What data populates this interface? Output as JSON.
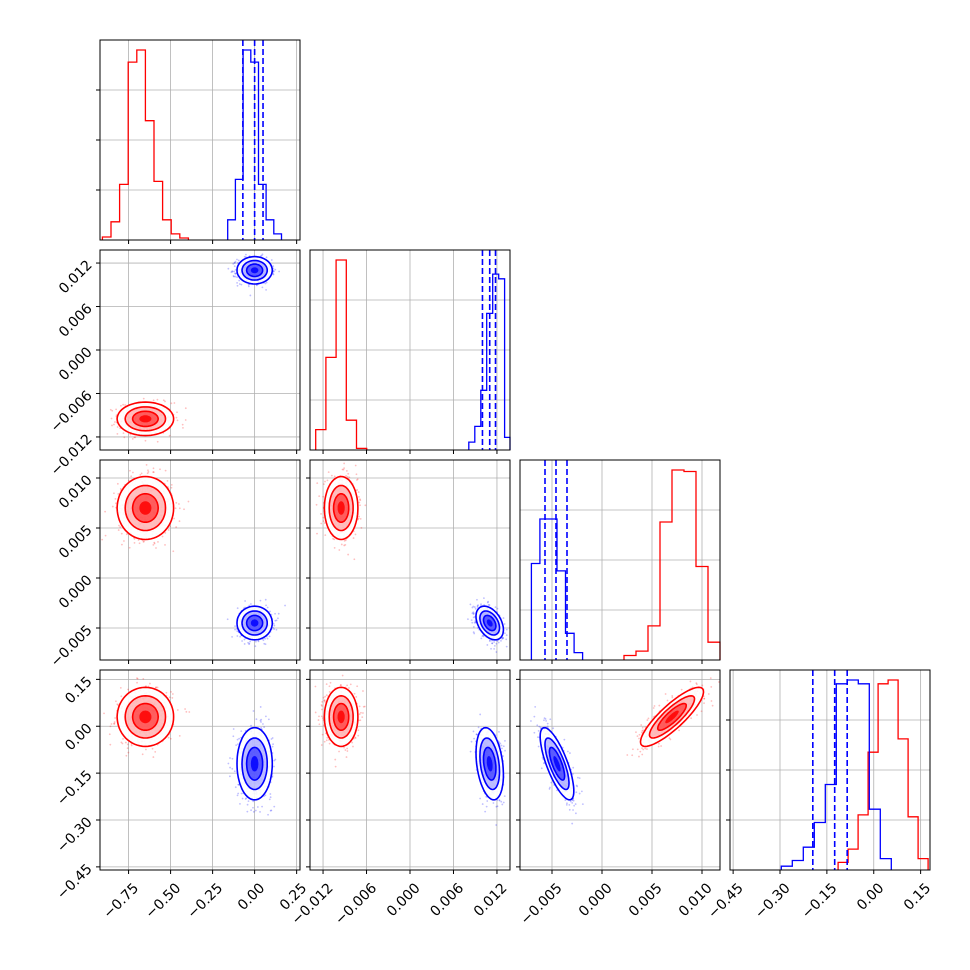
{
  "chart_data": {
    "type": "scatter",
    "title": "",
    "grid": true,
    "colors": {
      "run_a": "#ff0000",
      "run_b": "#0000ff"
    },
    "series": [],
    "parameters": [
      {
        "range": [
          -0.92,
          0.27
        ],
        "ticks": [
          -0.75,
          -0.5,
          -0.25,
          0.0,
          0.25
        ],
        "tick_labels": [
          "−0.75",
          "−0.50",
          "−0.25",
          "0.00",
          "0.25"
        ]
      },
      {
        "range": [
          -0.0138,
          0.0138
        ],
        "ticks": [
          -0.012,
          -0.006,
          0.0,
          0.006,
          0.012
        ],
        "tick_labels": [
          "−0.012",
          "−0.006",
          "0.000",
          "0.006",
          "0.012"
        ]
      },
      {
        "range": [
          -0.0082,
          0.0118
        ],
        "ticks": [
          -0.005,
          0.0,
          0.005,
          0.01
        ],
        "tick_labels": [
          "−0.005",
          "0.000",
          "0.005",
          "0.010"
        ]
      },
      {
        "range": [
          -0.46,
          0.18
        ],
        "ticks": [
          -0.45,
          -0.3,
          -0.15,
          0.0,
          0.15
        ],
        "tick_labels": [
          "−0.45",
          "−0.30",
          "−0.15",
          "0.00",
          "0.15"
        ]
      }
    ],
    "run_a": {
      "centers": [
        -0.65,
        -0.0095,
        0.007,
        0.03
      ],
      "sigmas": [
        0.08,
        0.0011,
        0.0015,
        0.045
      ],
      "correlations": {
        "2-3": 0.85
      },
      "histograms": [
        [
          0.3,
          1.8,
          5.5,
          17.6,
          18.8,
          11.8,
          5.8,
          2.0,
          0.6,
          0.2
        ],
        [
          1.3,
          5.9,
          12.1,
          1.9,
          0.1
        ],
        [
          0.3,
          0.6,
          2.3,
          9.3,
          12.8,
          12.7,
          6.3,
          1.2
        ],
        [
          0.4,
          1.1,
          2.9,
          6.2,
          9.8,
          10.0,
          6.9,
          2.8,
          0.6
        ]
      ]
    },
    "run_b": {
      "centers": [
        0.0,
        0.011,
        -0.0045,
        -0.12
      ],
      "sigmas": [
        0.05,
        0.0009,
        0.0008,
        0.055
      ],
      "correlations": {
        "1-2": -0.4,
        "1-3": -0.3,
        "2-3": -0.75
      },
      "histograms": [
        [
          2.0,
          6.0,
          18.8,
          17.6,
          5.5,
          2.0,
          0.6
        ],
        [
          0.5,
          1.5,
          3.8,
          8.7,
          11.2,
          10.9,
          0.8
        ],
        [
          6.5,
          9.5,
          9.5,
          6.0,
          1.8,
          0.5
        ],
        [
          0.2,
          0.5,
          1.2,
          2.5,
          4.5,
          9.8,
          10.0,
          9.8,
          3.2,
          0.6
        ]
      ],
      "quantile_lines": [
        [
          -0.07,
          0.0,
          0.05
        ],
        [
          0.01,
          0.011,
          0.0118
        ],
        [
          -0.0057,
          -0.0046,
          -0.0035
        ],
        [
          -0.195,
          -0.125,
          -0.085
        ]
      ]
    }
  }
}
